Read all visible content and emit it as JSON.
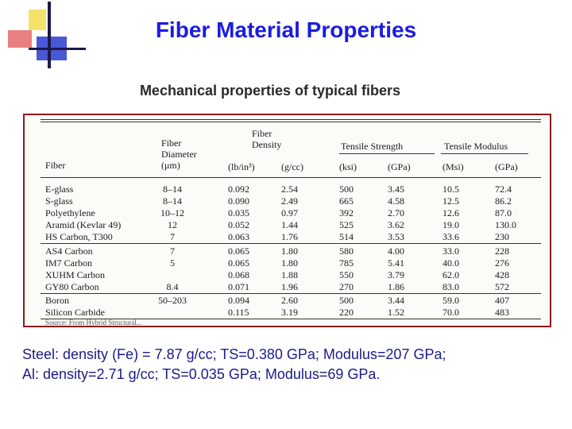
{
  "title": "Fiber Material Properties",
  "subtitle": "Mechanical properties of typical fibers",
  "table": {
    "headers": {
      "fiber": "Fiber",
      "diameter_top": "Fiber",
      "diameter_mid": "Diameter",
      "diameter_unit": "(μm)",
      "density_top": "Fiber",
      "density_mid": "Density",
      "density_unit1": "(lb/in³)",
      "density_unit2": "(g/cc)",
      "tensile_strength": "Tensile Strength",
      "ts_unit1": "(ksi)",
      "ts_unit2": "(GPa)",
      "tensile_modulus": "Tensile Modulus",
      "tm_unit1": "(Msi)",
      "tm_unit2": "(GPa)"
    },
    "rows": [
      {
        "name": "E-glass",
        "diameter": "8–14",
        "d_lb": "0.092",
        "d_gcc": "2.54",
        "ts_ksi": "500",
        "ts_gpa": "3.45",
        "tm_msi": "10.5",
        "tm_gpa": "72.4"
      },
      {
        "name": "S-glass",
        "diameter": "8–14",
        "d_lb": "0.090",
        "d_gcc": "2.49",
        "ts_ksi": "665",
        "ts_gpa": "4.58",
        "tm_msi": "12.5",
        "tm_gpa": "86.2"
      },
      {
        "name": "Polyethylene",
        "diameter": "10–12",
        "d_lb": "0.035",
        "d_gcc": "0.97",
        "ts_ksi": "392",
        "ts_gpa": "2.70",
        "tm_msi": "12.6",
        "tm_gpa": "87.0"
      },
      {
        "name": "Aramid (Kevlar 49)",
        "diameter": "12",
        "d_lb": "0.052",
        "d_gcc": "1.44",
        "ts_ksi": "525",
        "ts_gpa": "3.62",
        "tm_msi": "19.0",
        "tm_gpa": "130.0"
      },
      {
        "name": "HS Carbon, T300",
        "diameter": "7",
        "d_lb": "0.063",
        "d_gcc": "1.76",
        "ts_ksi": "514",
        "ts_gpa": "3.53",
        "tm_msi": "33.6",
        "tm_gpa": "230"
      },
      {
        "name": "AS4 Carbon",
        "diameter": "7",
        "d_lb": "0.065",
        "d_gcc": "1.80",
        "ts_ksi": "580",
        "ts_gpa": "4.00",
        "tm_msi": "33.0",
        "tm_gpa": "228"
      },
      {
        "name": "IM7 Carbon",
        "diameter": "5",
        "d_lb": "0.065",
        "d_gcc": "1.80",
        "ts_ksi": "785",
        "ts_gpa": "5.41",
        "tm_msi": "40.0",
        "tm_gpa": "276"
      },
      {
        "name": "XUHM Carbon",
        "diameter": "",
        "d_lb": "0.068",
        "d_gcc": "1.88",
        "ts_ksi": "550",
        "ts_gpa": "3.79",
        "tm_msi": "62.0",
        "tm_gpa": "428"
      },
      {
        "name": "GY80 Carbon",
        "diameter": "8.4",
        "d_lb": "0.071",
        "d_gcc": "1.96",
        "ts_ksi": "270",
        "ts_gpa": "1.86",
        "tm_msi": "83.0",
        "tm_gpa": "572"
      },
      {
        "name": "Boron",
        "diameter": "50–203",
        "d_lb": "0.094",
        "d_gcc": "2.60",
        "ts_ksi": "500",
        "ts_gpa": "3.44",
        "tm_msi": "59.0",
        "tm_gpa": "407"
      },
      {
        "name": "Silicon Carbide",
        "diameter": "",
        "d_lb": "0.115",
        "d_gcc": "3.19",
        "ts_ksi": "220",
        "ts_gpa": "1.52",
        "tm_msi": "70.0",
        "tm_gpa": "483"
      }
    ],
    "source_line": "Source: From Hybrid Structural..."
  },
  "notes": {
    "steel": "Steel:  density (Fe) = 7.87 g/cc; TS=0.380 GPa; Modulus=207 GPa;",
    "al": "Al: density=2.71 g/cc; TS=0.035 GPa; Modulus=69 GPa."
  }
}
